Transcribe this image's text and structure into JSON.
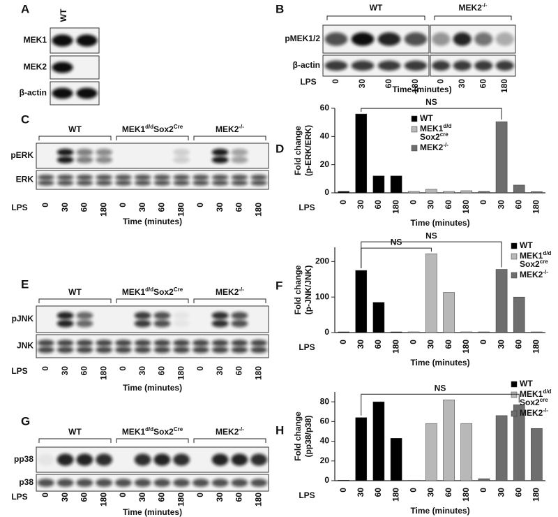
{
  "panels": {
    "A": {
      "letter": "A",
      "column_label": "WT",
      "rows": [
        "MEK1",
        "MEK2",
        "β-actin"
      ]
    },
    "B": {
      "letter": "B",
      "groups": [
        [
          [
            {
              "text": "WT"
            }
          ]
        ],
        [
          [
            {
              "text": "MEK2"
            },
            {
              "text": "-/-",
              "sup": true
            }
          ]
        ]
      ],
      "rows": [
        "pMEK1/2",
        "β-actin"
      ],
      "lane_axis_label": "LPS",
      "lanes": [
        "0",
        "30",
        "60",
        "180",
        "0",
        "30",
        "60",
        "180"
      ],
      "xlabel": "Time (minutes)"
    },
    "C": {
      "letter": "C",
      "groups": [
        [
          [
            {
              "text": "WT"
            }
          ]
        ],
        [
          [
            {
              "text": "MEK1"
            },
            {
              "text": "d/d",
              "sup": true
            },
            {
              "text": "Sox2"
            },
            {
              "text": "Cre",
              "sup": true
            }
          ]
        ],
        [
          [
            {
              "text": "MEK2"
            },
            {
              "text": "-/-",
              "sup": true
            }
          ]
        ]
      ],
      "rows": [
        "pERK",
        "ERK"
      ],
      "lane_axis_label": "LPS",
      "lanes": [
        "0",
        "30",
        "60",
        "180",
        "0",
        "30",
        "60",
        "180",
        "0",
        "30",
        "60",
        "180"
      ],
      "xlabel": "Time (minutes)"
    },
    "E": {
      "letter": "E",
      "groups": [
        [
          [
            {
              "text": "WT"
            }
          ]
        ],
        [
          [
            {
              "text": "MEK1"
            },
            {
              "text": "d/d",
              "sup": true
            },
            {
              "text": "Sox2"
            },
            {
              "text": "Cre",
              "sup": true
            }
          ]
        ],
        [
          [
            {
              "text": "MEK2"
            },
            {
              "text": "-/-",
              "sup": true
            }
          ]
        ]
      ],
      "rows": [
        "pJNK",
        "JNK"
      ],
      "lane_axis_label": "LPS",
      "lanes": [
        "0",
        "30",
        "60",
        "180",
        "0",
        "30",
        "60",
        "180",
        "0",
        "30",
        "60",
        "180"
      ],
      "xlabel": "Time (minutes)"
    },
    "G": {
      "letter": "G",
      "groups": [
        [
          [
            {
              "text": "WT"
            }
          ]
        ],
        [
          [
            {
              "text": "MEK1"
            },
            {
              "text": "d/d",
              "sup": true
            },
            {
              "text": "Sox2"
            },
            {
              "text": "Cre",
              "sup": true
            }
          ]
        ],
        [
          [
            {
              "text": "MEK2"
            },
            {
              "text": "-/-",
              "sup": true
            }
          ]
        ]
      ],
      "rows": [
        "pp38",
        "p38"
      ],
      "lane_axis_label": "LPS",
      "lanes": [
        "0",
        "30",
        "60",
        "180",
        "0",
        "30",
        "60",
        "180",
        "0",
        "30",
        "60",
        "180"
      ],
      "xlabel": "Time (minutes)"
    }
  },
  "chart_data": [
    {
      "type": "bar",
      "letter": "D",
      "ylabel": [
        "Fold change",
        "(p-ERK/ERK)"
      ],
      "xaxis_lead": "LPS",
      "xlabel": "Time (minutes)",
      "categories": [
        "0",
        "30",
        "60",
        "180",
        "0",
        "30",
        "60",
        "180",
        "0",
        "30",
        "60",
        "180"
      ],
      "series": [
        {
          "name": [
            [
              {
                "text": "WT"
              }
            ]
          ],
          "color": "#000000",
          "values": [
            1,
            56,
            12,
            12,
            null,
            null,
            null,
            null,
            null,
            null,
            null,
            null
          ]
        },
        {
          "name": [
            [
              {
                "text": "MEK1"
              },
              {
                "text": "d/d",
                "sup": true
              }
            ],
            [
              {
                "text": "Sox2"
              },
              {
                "text": "cre",
                "sup": true
              }
            ]
          ],
          "color": "#b8b8b8",
          "values": [
            null,
            null,
            null,
            null,
            1,
            2.5,
            1,
            1.5,
            null,
            null,
            null,
            null
          ]
        },
        {
          "name": [
            [
              {
                "text": "MEK2"
              },
              {
                "text": "-/-",
                "sup": true
              }
            ]
          ],
          "color": "#6e6e6e",
          "values": [
            null,
            null,
            null,
            null,
            null,
            null,
            null,
            null,
            1,
            50.5,
            5.5,
            0.8
          ]
        }
      ],
      "ylim": [
        0,
        60
      ],
      "yticks": [
        0,
        20,
        40,
        60
      ],
      "annotations": [
        "NS"
      ]
    },
    {
      "type": "bar",
      "letter": "F",
      "ylabel": [
        "Fold change",
        "(p-JNK/JNK)"
      ],
      "xaxis_lead": "LPS",
      "xlabel": "Time (minutes)",
      "categories": [
        "0",
        "30",
        "60",
        "180",
        "0",
        "30",
        "60",
        "180",
        "0",
        "30",
        "60",
        "180"
      ],
      "series": [
        {
          "name": [
            [
              {
                "text": "WT"
              }
            ]
          ],
          "color": "#000000",
          "values": [
            2,
            175,
            85,
            2,
            null,
            null,
            null,
            null,
            null,
            null,
            null,
            null
          ]
        },
        {
          "name": [
            [
              {
                "text": "MEK1"
              },
              {
                "text": "d/d",
                "sup": true
              }
            ],
            [
              {
                "text": "Sox2"
              },
              {
                "text": "cre",
                "sup": true
              }
            ]
          ],
          "color": "#b8b8b8",
          "values": [
            null,
            null,
            null,
            null,
            2,
            222,
            113,
            2,
            null,
            null,
            null,
            null
          ]
        },
        {
          "name": [
            [
              {
                "text": "MEK2"
              },
              {
                "text": "-/-",
                "sup": true
              }
            ]
          ],
          "color": "#6e6e6e",
          "values": [
            null,
            null,
            null,
            null,
            null,
            null,
            null,
            null,
            2,
            178,
            100,
            2
          ]
        }
      ],
      "ylim": [
        0,
        240
      ],
      "yticks": [
        0,
        100,
        200
      ],
      "annotations": [
        "NS",
        "NS"
      ]
    },
    {
      "type": "bar",
      "letter": "H",
      "ylabel": [
        "Fold change",
        "(pp38/p38)"
      ],
      "xaxis_lead": "LPS",
      "xlabel": "Time (minutes)",
      "categories": [
        "0",
        "30",
        "60",
        "180",
        "0",
        "30",
        "60",
        "180",
        "0",
        "30",
        "60",
        "180"
      ],
      "series": [
        {
          "name": [
            [
              {
                "text": "WT"
              }
            ]
          ],
          "color": "#000000",
          "values": [
            0.5,
            64,
            80,
            43,
            null,
            null,
            null,
            null,
            null,
            null,
            null,
            null
          ]
        },
        {
          "name": [
            [
              {
                "text": "MEK1"
              },
              {
                "text": "d/d",
                "sup": true
              }
            ],
            [
              {
                "text": "Sox2"
              },
              {
                "text": "cre",
                "sup": true
              }
            ]
          ],
          "color": "#b8b8b8",
          "values": [
            null,
            null,
            null,
            null,
            0.5,
            58,
            82,
            58,
            null,
            null,
            null,
            null
          ]
        },
        {
          "name": [
            [
              {
                "text": "MEK2"
              },
              {
                "text": "-/-",
                "sup": true
              }
            ]
          ],
          "color": "#6e6e6e",
          "values": [
            null,
            null,
            null,
            null,
            null,
            null,
            null,
            null,
            2,
            66,
            77,
            53
          ]
        }
      ],
      "ylim": [
        0,
        90
      ],
      "yticks": [
        0,
        20,
        40,
        60,
        80
      ],
      "annotations": [
        "NS"
      ]
    }
  ]
}
